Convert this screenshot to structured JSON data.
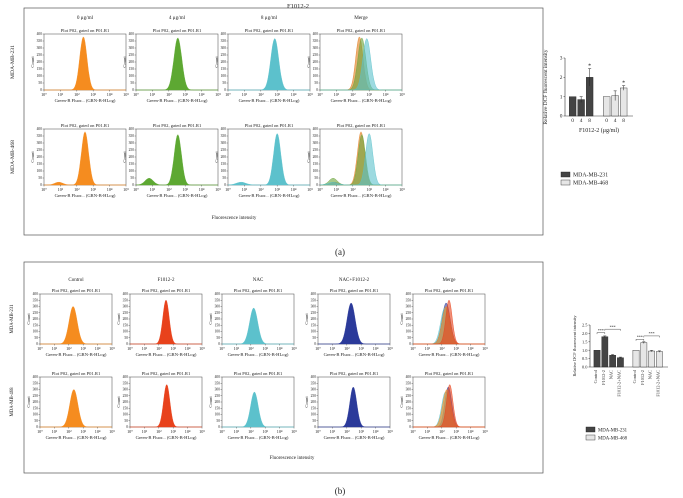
{
  "panel_a": {
    "label": "(a)",
    "header": "F1012-2",
    "col_titles": [
      "0 μg/ml",
      "4 μg/ml",
      "8 μg/ml",
      "Merge"
    ],
    "row_labels": [
      "MDA-MB-231",
      "MDA-MB-468"
    ],
    "plot_title": "Plot P02, gated on P01.R1",
    "x_axis_label": "Green-B Fluor... (GRN-B-HLog)",
    "y_axis_label": "Count",
    "y_ticks": [
      "0",
      "50",
      "100",
      "150",
      "200",
      "250",
      "300",
      "350",
      "400"
    ],
    "x_ticks": [
      "10⁰",
      "10¹",
      "10²",
      "10³",
      "10⁴",
      "10⁵"
    ],
    "shared_xlabel": "Fluorescence intensity",
    "colors": [
      "#f58c1f",
      "#5da832",
      "#5cc1cc",
      "#c98a2a"
    ]
  },
  "panel_b": {
    "label": "(b)",
    "col_titles": [
      "Control",
      "F1012-2",
      "NAC",
      "NAC+F1012-2",
      "Merge"
    ],
    "row_labels": [
      "MDA-MB-231",
      "MDA-MB-468"
    ],
    "plot_title": "Plot P02, gated on P01.R1",
    "x_axis_label": "Green-B Fluor... (GRN-B-HLog)",
    "y_axis_label": "Count",
    "y_ticks": [
      "0",
      "50",
      "100",
      "150",
      "200",
      "250",
      "300",
      "350",
      "400"
    ],
    "x_ticks": [
      "10⁰",
      "10¹",
      "10²",
      "10³",
      "10⁴",
      "10⁵"
    ],
    "shared_xlabel": "Fluorescence intensity",
    "colors": [
      "#f58c1f",
      "#e8421c",
      "#5cc1cc",
      "#2b3a9a",
      "#c0704a"
    ]
  },
  "chart_data": [
    {
      "type": "bar",
      "id": "bar_a",
      "title": "",
      "xlabel": "F1012-2 (μg/ml)",
      "ylabel": "Relative DCF fluorescent intensity",
      "categories": [
        "0",
        "4",
        "8"
      ],
      "ylim": [
        0,
        3
      ],
      "yticks": [
        "0",
        "1",
        "2",
        "3"
      ],
      "series": [
        {
          "name": "MDA-MB-231",
          "values": [
            1.0,
            0.85,
            2.0
          ],
          "errors": [
            0.0,
            0.15,
            0.45
          ]
        },
        {
          "name": "MDA-MB-468",
          "values": [
            1.0,
            1.05,
            1.45
          ],
          "errors": [
            0.0,
            0.25,
            0.12
          ]
        }
      ],
      "annotations": [
        "*",
        "*"
      ]
    },
    {
      "type": "bar",
      "id": "bar_b",
      "title": "",
      "xlabel": "",
      "ylabel": "Relative DCF fluorescent intensity",
      "categories": [
        "Control",
        "F1012-2",
        "NAC",
        "F1012-2+NAC"
      ],
      "ylim": [
        0,
        2.5
      ],
      "yticks": [
        "0.0",
        "0.5",
        "1.0",
        "1.5",
        "2.0",
        "2.5"
      ],
      "series": [
        {
          "name": "MDA-MB-231",
          "values": [
            1.0,
            1.8,
            0.7,
            0.55
          ],
          "errors": [
            0.0,
            0.05,
            0.04,
            0.04
          ]
        },
        {
          "name": "MDA-MB-468",
          "values": [
            1.0,
            1.45,
            0.95,
            0.92
          ],
          "errors": [
            0.0,
            0.05,
            0.04,
            0.04
          ]
        }
      ],
      "annotations": [
        "***",
        "***",
        "***",
        "***"
      ]
    }
  ]
}
